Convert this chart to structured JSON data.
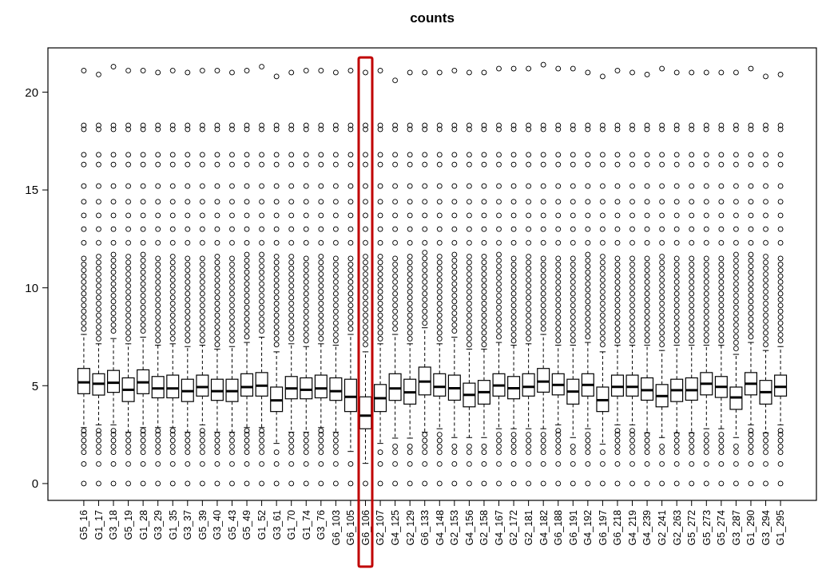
{
  "chart_data": {
    "type": "box",
    "title": "counts",
    "categories": [
      "G5_16",
      "G1_17",
      "G3_18",
      "G5_19",
      "G1_28",
      "G3_29",
      "G1_35",
      "G3_37",
      "G5_39",
      "G3_40",
      "G5_43",
      "G5_49",
      "G1_52",
      "G3_61",
      "G1_70",
      "G1_74",
      "G3_76",
      "G6_103",
      "G6_105",
      "G6_106",
      "G2_107",
      "G4_125",
      "G2_129",
      "G6_133",
      "G4_148",
      "G2_153",
      "G4_156",
      "G2_158",
      "G4_167",
      "G2_172",
      "G2_181",
      "G4_182",
      "G6_188",
      "G6_191",
      "G4_192",
      "G6_197",
      "G6_218",
      "G4_219",
      "G4_239",
      "G2_241",
      "G2_263",
      "G5_272",
      "G5_273",
      "G5_274",
      "G3_287",
      "G1_290",
      "G3_294",
      "G1_295"
    ],
    "ylim": [
      -0.86,
      22.26
    ],
    "yticks": [
      0,
      5,
      10,
      15,
      20
    ],
    "boxes": [
      {
        "low": 2.86,
        "q1": 4.59,
        "median": 5.17,
        "q3": 5.88,
        "high": 7.62,
        "outliers": [
          0,
          1.0,
          1.6,
          1.9,
          2.2,
          2.5,
          2.7,
          7.9,
          8.2,
          8.5,
          8.8,
          9.1,
          9.4,
          9.7,
          10.0,
          10.3,
          10.6,
          10.9,
          11.2,
          11.5,
          12.3,
          13.0,
          13.7,
          14.4,
          15.2,
          16.3,
          16.8,
          18.1,
          18.3,
          21.1
        ]
      },
      {
        "low": 3.0,
        "q1": 4.52,
        "median": 5.1,
        "q3": 5.61,
        "high": 7.14,
        "outliers": [
          0,
          1.0,
          1.6,
          1.9,
          2.2,
          2.5,
          2.7,
          7.4,
          7.7,
          8.0,
          8.3,
          8.6,
          8.9,
          9.2,
          9.5,
          9.8,
          10.1,
          10.4,
          10.7,
          11.0,
          11.3,
          11.6,
          12.3,
          13.0,
          13.7,
          14.4,
          15.2,
          16.3,
          16.8,
          18.1,
          18.3,
          20.9
        ]
      },
      {
        "low": 3.0,
        "q1": 4.66,
        "median": 5.15,
        "q3": 5.78,
        "high": 7.41,
        "outliers": [
          0,
          1.0,
          1.6,
          1.9,
          2.2,
          2.5,
          2.7,
          7.8,
          8.1,
          8.4,
          8.7,
          9.0,
          9.3,
          9.6,
          9.9,
          10.2,
          10.5,
          10.8,
          11.1,
          11.4,
          11.7,
          12.3,
          13.0,
          13.7,
          14.4,
          15.2,
          16.3,
          16.8,
          18.1,
          18.3,
          21.3
        ]
      },
      {
        "low": 2.62,
        "q1": 4.19,
        "median": 4.79,
        "q3": 5.4,
        "high": 7.14,
        "outliers": [
          0,
          1.0,
          1.6,
          1.9,
          2.2,
          2.5,
          7.4,
          7.7,
          8.0,
          8.3,
          8.6,
          8.9,
          9.2,
          9.5,
          9.8,
          10.1,
          10.4,
          10.7,
          11.0,
          11.3,
          11.6,
          12.3,
          13.0,
          13.7,
          14.4,
          15.2,
          16.3,
          16.8,
          18.1,
          18.3,
          21.1
        ]
      },
      {
        "low": 2.86,
        "q1": 4.59,
        "median": 5.17,
        "q3": 5.81,
        "high": 7.48,
        "outliers": [
          0,
          1.0,
          1.6,
          1.9,
          2.2,
          2.5,
          2.7,
          7.8,
          8.1,
          8.4,
          8.7,
          9.0,
          9.3,
          9.6,
          9.9,
          10.2,
          10.5,
          10.8,
          11.1,
          11.4,
          11.7,
          12.3,
          13.0,
          13.7,
          14.4,
          15.2,
          16.3,
          16.8,
          18.1,
          18.3,
          21.1
        ]
      },
      {
        "low": 2.86,
        "q1": 4.38,
        "median": 4.86,
        "q3": 5.47,
        "high": 7.07,
        "outliers": [
          0,
          1.0,
          1.6,
          1.9,
          2.2,
          2.5,
          2.7,
          7.3,
          7.6,
          7.9,
          8.2,
          8.5,
          8.8,
          9.1,
          9.4,
          9.7,
          10.0,
          10.3,
          10.6,
          10.9,
          11.2,
          11.5,
          12.3,
          13.0,
          13.7,
          14.4,
          15.2,
          16.3,
          16.8,
          18.1,
          18.3,
          21.0
        ]
      },
      {
        "low": 2.86,
        "q1": 4.38,
        "median": 4.86,
        "q3": 5.54,
        "high": 7.14,
        "outliers": [
          0,
          1.0,
          1.6,
          1.9,
          2.2,
          2.5,
          2.7,
          7.4,
          7.7,
          8.0,
          8.3,
          8.6,
          8.9,
          9.2,
          9.5,
          9.8,
          10.1,
          10.4,
          10.7,
          11.0,
          11.3,
          11.6,
          12.3,
          13.0,
          13.7,
          14.4,
          15.2,
          16.3,
          16.8,
          18.1,
          18.3,
          21.1
        ]
      },
      {
        "low": 2.62,
        "q1": 4.19,
        "median": 4.72,
        "q3": 5.33,
        "high": 7.0,
        "outliers": [
          0,
          1.0,
          1.6,
          1.9,
          2.2,
          2.5,
          7.3,
          7.6,
          7.9,
          8.2,
          8.5,
          8.8,
          9.1,
          9.4,
          9.7,
          10.0,
          10.3,
          10.6,
          10.9,
          11.2,
          11.5,
          12.3,
          13.0,
          13.7,
          14.4,
          15.2,
          16.3,
          16.8,
          18.1,
          18.3,
          21.0
        ]
      },
      {
        "low": 3.0,
        "q1": 4.47,
        "median": 4.93,
        "q3": 5.54,
        "high": 7.07,
        "outliers": [
          0,
          1.0,
          1.6,
          1.9,
          2.2,
          2.5,
          2.7,
          7.3,
          7.6,
          7.9,
          8.2,
          8.5,
          8.8,
          9.1,
          9.4,
          9.7,
          10.0,
          10.3,
          10.6,
          10.9,
          11.2,
          11.5,
          12.3,
          13.0,
          13.7,
          14.4,
          15.2,
          16.3,
          16.8,
          18.1,
          18.3,
          21.1
        ]
      },
      {
        "low": 2.62,
        "q1": 4.25,
        "median": 4.72,
        "q3": 5.33,
        "high": 6.87,
        "outliers": [
          0,
          1.0,
          1.6,
          1.9,
          2.2,
          2.5,
          7.1,
          7.4,
          7.7,
          8.0,
          8.3,
          8.6,
          8.9,
          9.2,
          9.5,
          9.8,
          10.1,
          10.4,
          10.7,
          11.0,
          11.3,
          11.6,
          12.3,
          13.0,
          13.7,
          14.4,
          15.2,
          16.3,
          16.8,
          18.1,
          18.3,
          21.1
        ]
      },
      {
        "low": 2.62,
        "q1": 4.19,
        "median": 4.72,
        "q3": 5.33,
        "high": 7.0,
        "outliers": [
          0,
          1.0,
          1.6,
          1.9,
          2.2,
          2.5,
          7.3,
          7.6,
          7.9,
          8.2,
          8.5,
          8.8,
          9.1,
          9.4,
          9.7,
          10.0,
          10.3,
          10.6,
          10.9,
          11.2,
          11.5,
          12.3,
          13.0,
          13.7,
          14.4,
          15.2,
          16.3,
          16.8,
          18.1,
          18.3,
          21.0
        ]
      },
      {
        "low": 2.86,
        "q1": 4.47,
        "median": 4.93,
        "q3": 5.61,
        "high": 7.21,
        "outliers": [
          0,
          1.0,
          1.6,
          1.9,
          2.2,
          2.5,
          2.7,
          7.5,
          7.8,
          8.1,
          8.4,
          8.7,
          9.0,
          9.3,
          9.6,
          9.9,
          10.2,
          10.5,
          10.8,
          11.1,
          11.4,
          11.7,
          12.3,
          13.0,
          13.7,
          14.4,
          15.2,
          16.3,
          16.8,
          18.1,
          18.3,
          21.1
        ]
      },
      {
        "low": 2.86,
        "q1": 4.47,
        "median": 5.0,
        "q3": 5.67,
        "high": 7.48,
        "outliers": [
          0,
          1.0,
          1.6,
          1.9,
          2.2,
          2.5,
          2.7,
          7.8,
          8.1,
          8.4,
          8.7,
          9.0,
          9.3,
          9.6,
          9.9,
          10.2,
          10.5,
          10.8,
          11.1,
          11.4,
          11.7,
          12.3,
          13.0,
          13.7,
          14.4,
          15.2,
          16.3,
          16.8,
          18.1,
          18.3,
          21.3
        ]
      },
      {
        "low": 2.05,
        "q1": 3.68,
        "median": 4.25,
        "q3": 4.93,
        "high": 6.73,
        "outliers": [
          0,
          1.0,
          1.6,
          7.1,
          7.4,
          7.7,
          8.0,
          8.3,
          8.6,
          8.9,
          9.2,
          9.5,
          9.8,
          10.1,
          10.4,
          10.7,
          11.0,
          11.3,
          11.6,
          12.3,
          13.0,
          13.7,
          14.4,
          15.2,
          16.3,
          16.8,
          18.1,
          18.3,
          20.8
        ]
      },
      {
        "low": 2.62,
        "q1": 4.33,
        "median": 4.86,
        "q3": 5.47,
        "high": 7.14,
        "outliers": [
          0,
          1.0,
          1.6,
          1.9,
          2.2,
          2.5,
          7.4,
          7.7,
          8.0,
          8.3,
          8.6,
          8.9,
          9.2,
          9.5,
          9.8,
          10.1,
          10.4,
          10.7,
          11.0,
          11.3,
          11.6,
          12.3,
          13.0,
          13.7,
          14.4,
          15.2,
          16.3,
          16.8,
          18.1,
          18.3,
          21.0
        ]
      },
      {
        "low": 2.62,
        "q1": 4.33,
        "median": 4.79,
        "q3": 5.4,
        "high": 7.0,
        "outliers": [
          0,
          1.0,
          1.6,
          1.9,
          2.2,
          2.5,
          7.3,
          7.6,
          7.9,
          8.2,
          8.5,
          8.8,
          9.1,
          9.4,
          9.7,
          10.0,
          10.3,
          10.6,
          10.9,
          11.2,
          11.5,
          12.3,
          13.0,
          13.7,
          14.4,
          15.2,
          16.3,
          16.8,
          18.1,
          18.3,
          21.1
        ]
      },
      {
        "low": 2.86,
        "q1": 4.38,
        "median": 4.86,
        "q3": 5.54,
        "high": 7.14,
        "outliers": [
          0,
          1.0,
          1.6,
          1.9,
          2.2,
          2.5,
          2.7,
          7.4,
          7.7,
          8.0,
          8.3,
          8.6,
          8.9,
          9.2,
          9.5,
          9.8,
          10.1,
          10.4,
          10.7,
          11.0,
          11.3,
          11.6,
          12.3,
          13.0,
          13.7,
          14.4,
          15.2,
          16.3,
          16.8,
          18.1,
          18.3,
          21.1
        ]
      },
      {
        "low": 2.62,
        "q1": 4.25,
        "median": 4.72,
        "q3": 5.4,
        "high": 7.07,
        "outliers": [
          0,
          1.0,
          1.6,
          1.9,
          2.2,
          2.5,
          7.3,
          7.6,
          7.9,
          8.2,
          8.5,
          8.8,
          9.1,
          9.4,
          9.7,
          10.0,
          10.3,
          10.6,
          10.9,
          11.2,
          11.5,
          12.3,
          13.0,
          13.7,
          14.4,
          15.2,
          16.3,
          16.8,
          18.1,
          18.3,
          21.0
        ]
      },
      {
        "low": 1.64,
        "q1": 3.68,
        "median": 4.43,
        "q3": 5.33,
        "high": 7.62,
        "outliers": [
          0,
          1.0,
          7.9,
          8.2,
          8.5,
          8.8,
          9.1,
          9.4,
          9.7,
          10.0,
          10.3,
          10.6,
          10.9,
          11.2,
          11.5,
          12.3,
          13.0,
          13.7,
          14.4,
          15.2,
          16.3,
          16.8,
          18.1,
          18.3,
          21.1
        ]
      },
      {
        "low": 1.03,
        "q1": 2.8,
        "median": 3.47,
        "q3": 4.43,
        "high": 6.73,
        "outliers": [
          0,
          7.1,
          7.4,
          7.7,
          8.0,
          8.3,
          8.6,
          8.9,
          9.2,
          9.5,
          9.8,
          10.1,
          10.4,
          10.7,
          11.0,
          11.3,
          11.6,
          12.3,
          13.0,
          13.7,
          14.4,
          15.2,
          16.3,
          16.8,
          18.1,
          18.3,
          21.0
        ]
      },
      {
        "low": 2.05,
        "q1": 3.68,
        "median": 4.36,
        "q3": 5.06,
        "high": 7.14,
        "outliers": [
          0,
          1.0,
          1.6,
          7.4,
          7.7,
          8.0,
          8.3,
          8.6,
          8.9,
          9.2,
          9.5,
          9.8,
          10.1,
          10.4,
          10.7,
          11.0,
          11.3,
          11.6,
          12.3,
          13.0,
          13.7,
          14.4,
          15.2,
          16.3,
          16.8,
          18.1,
          18.3,
          21.1
        ]
      },
      {
        "low": 2.32,
        "q1": 4.25,
        "median": 4.86,
        "q3": 5.61,
        "high": 7.62,
        "outliers": [
          0,
          1.0,
          1.6,
          1.9,
          7.9,
          8.2,
          8.5,
          8.8,
          9.1,
          9.4,
          9.7,
          10.0,
          10.3,
          10.6,
          10.9,
          11.2,
          11.5,
          12.3,
          13.0,
          13.7,
          14.4,
          15.2,
          16.3,
          16.8,
          18.1,
          18.3,
          20.6
        ]
      },
      {
        "low": 2.32,
        "q1": 4.06,
        "median": 4.66,
        "q3": 5.33,
        "high": 7.14,
        "outliers": [
          0,
          1.0,
          1.6,
          1.9,
          7.4,
          7.7,
          8.0,
          8.3,
          8.6,
          8.9,
          9.2,
          9.5,
          9.8,
          10.1,
          10.4,
          10.7,
          11.0,
          11.3,
          11.6,
          12.3,
          13.0,
          13.7,
          14.4,
          15.2,
          16.3,
          16.8,
          18.1,
          18.3,
          21.0
        ]
      },
      {
        "low": 2.62,
        "q1": 4.53,
        "median": 5.21,
        "q3": 5.95,
        "high": 7.96,
        "outliers": [
          0,
          1.0,
          1.6,
          1.9,
          2.2,
          2.5,
          8.2,
          8.5,
          8.8,
          9.1,
          9.4,
          9.7,
          10.0,
          10.3,
          10.6,
          10.9,
          11.2,
          11.5,
          11.8,
          12.3,
          13.0,
          13.7,
          14.4,
          15.2,
          16.3,
          16.8,
          18.1,
          18.3,
          21.0
        ]
      },
      {
        "low": 2.8,
        "q1": 4.47,
        "median": 4.94,
        "q3": 5.61,
        "high": 7.14,
        "outliers": [
          0,
          1.0,
          1.6,
          1.9,
          2.2,
          2.5,
          7.4,
          7.7,
          8.0,
          8.3,
          8.6,
          8.9,
          9.2,
          9.5,
          9.8,
          10.1,
          10.4,
          10.7,
          11.0,
          11.3,
          11.6,
          12.3,
          13.0,
          13.7,
          14.4,
          15.2,
          16.3,
          16.8,
          18.1,
          18.3,
          21.0
        ]
      },
      {
        "low": 2.35,
        "q1": 4.26,
        "median": 4.87,
        "q3": 5.54,
        "high": 7.48,
        "outliers": [
          0,
          1.0,
          1.6,
          1.9,
          7.8,
          8.1,
          8.4,
          8.7,
          9.0,
          9.3,
          9.6,
          9.9,
          10.2,
          10.5,
          10.8,
          11.1,
          11.4,
          11.7,
          12.3,
          13.0,
          13.7,
          14.4,
          15.2,
          16.3,
          16.8,
          18.1,
          18.3,
          21.1
        ]
      },
      {
        "low": 2.35,
        "q1": 3.92,
        "median": 4.53,
        "q3": 5.13,
        "high": 6.87,
        "outliers": [
          0,
          1.0,
          1.6,
          1.9,
          7.1,
          7.4,
          7.7,
          8.0,
          8.3,
          8.6,
          8.9,
          9.2,
          9.5,
          9.8,
          10.1,
          10.4,
          10.7,
          11.0,
          11.3,
          11.6,
          12.3,
          13.0,
          13.7,
          14.4,
          15.2,
          16.3,
          16.8,
          18.1,
          18.3,
          21.0
        ]
      },
      {
        "low": 2.35,
        "q1": 4.06,
        "median": 4.67,
        "q3": 5.27,
        "high": 6.87,
        "outliers": [
          0,
          1.0,
          1.6,
          1.9,
          7.1,
          7.4,
          7.7,
          8.0,
          8.3,
          8.6,
          8.9,
          9.2,
          9.5,
          9.8,
          10.1,
          10.4,
          10.7,
          11.0,
          11.3,
          11.6,
          12.3,
          13.0,
          13.7,
          14.4,
          15.2,
          16.3,
          16.8,
          18.1,
          18.3,
          21.0
        ]
      },
      {
        "low": 2.8,
        "q1": 4.47,
        "median": 5.01,
        "q3": 5.61,
        "high": 7.21,
        "outliers": [
          0,
          1.0,
          1.6,
          1.9,
          2.2,
          2.5,
          7.5,
          7.8,
          8.1,
          8.4,
          8.7,
          9.0,
          9.3,
          9.6,
          9.9,
          10.2,
          10.5,
          10.8,
          11.1,
          11.4,
          11.7,
          12.3,
          13.0,
          13.7,
          14.4,
          15.2,
          16.3,
          16.8,
          18.1,
          18.3,
          21.2
        ]
      },
      {
        "low": 2.8,
        "q1": 4.33,
        "median": 4.87,
        "q3": 5.47,
        "high": 7.07,
        "outliers": [
          0,
          1.0,
          1.6,
          1.9,
          2.2,
          2.5,
          7.3,
          7.6,
          7.9,
          8.2,
          8.5,
          8.8,
          9.1,
          9.4,
          9.7,
          10.0,
          10.3,
          10.6,
          10.9,
          11.2,
          11.5,
          12.3,
          13.0,
          13.7,
          14.4,
          15.2,
          16.3,
          16.8,
          18.1,
          18.3,
          21.2
        ]
      },
      {
        "low": 2.8,
        "q1": 4.47,
        "median": 4.94,
        "q3": 5.61,
        "high": 7.14,
        "outliers": [
          0,
          1.0,
          1.6,
          1.9,
          2.2,
          2.5,
          7.4,
          7.7,
          8.0,
          8.3,
          8.6,
          8.9,
          9.2,
          9.5,
          9.8,
          10.1,
          10.4,
          10.7,
          11.0,
          11.3,
          11.6,
          12.3,
          13.0,
          13.7,
          14.4,
          15.2,
          16.3,
          16.8,
          18.1,
          18.3,
          21.2
        ]
      },
      {
        "low": 2.8,
        "q1": 4.67,
        "median": 5.21,
        "q3": 5.88,
        "high": 7.62,
        "outliers": [
          0,
          1.0,
          1.6,
          1.9,
          2.2,
          2.5,
          7.9,
          8.2,
          8.5,
          8.8,
          9.1,
          9.4,
          9.7,
          10.0,
          10.3,
          10.6,
          10.9,
          11.2,
          11.5,
          12.3,
          13.0,
          13.7,
          14.4,
          15.2,
          16.3,
          16.8,
          18.1,
          18.3,
          21.4
        ]
      },
      {
        "low": 3.0,
        "q1": 4.53,
        "median": 5.04,
        "q3": 5.61,
        "high": 7.07,
        "outliers": [
          0,
          1.0,
          1.6,
          1.9,
          2.2,
          2.5,
          2.7,
          7.3,
          7.6,
          7.9,
          8.2,
          8.5,
          8.8,
          9.1,
          9.4,
          9.7,
          10.0,
          10.3,
          10.6,
          10.9,
          11.2,
          11.5,
          12.3,
          13.0,
          13.7,
          14.4,
          15.2,
          16.3,
          16.8,
          18.1,
          18.3,
          21.2
        ]
      },
      {
        "low": 2.35,
        "q1": 4.06,
        "median": 4.7,
        "q3": 5.33,
        "high": 7.07,
        "outliers": [
          0,
          1.0,
          1.6,
          1.9,
          7.3,
          7.6,
          7.9,
          8.2,
          8.5,
          8.8,
          9.1,
          9.4,
          9.7,
          10.0,
          10.3,
          10.6,
          10.9,
          11.2,
          11.5,
          12.3,
          13.0,
          13.7,
          14.4,
          15.2,
          16.3,
          16.8,
          18.1,
          18.3,
          21.2
        ]
      },
      {
        "low": 2.8,
        "q1": 4.47,
        "median": 5.04,
        "q3": 5.61,
        "high": 7.21,
        "outliers": [
          0,
          1.0,
          1.6,
          1.9,
          2.2,
          2.5,
          7.5,
          7.8,
          8.1,
          8.4,
          8.7,
          9.0,
          9.3,
          9.6,
          9.9,
          10.2,
          10.5,
          10.8,
          11.1,
          11.4,
          11.7,
          12.3,
          13.0,
          13.7,
          14.4,
          15.2,
          16.3,
          16.8,
          18.1,
          18.3,
          21.0
        ]
      },
      {
        "low": 2.01,
        "q1": 3.68,
        "median": 4.26,
        "q3": 4.93,
        "high": 6.73,
        "outliers": [
          0,
          1.0,
          1.6,
          7.1,
          7.4,
          7.7,
          8.0,
          8.3,
          8.6,
          8.9,
          9.2,
          9.5,
          9.8,
          10.1,
          10.4,
          10.7,
          11.0,
          11.3,
          11.6,
          12.3,
          13.0,
          13.7,
          14.4,
          15.2,
          16.3,
          16.8,
          18.1,
          18.3,
          20.8
        ]
      },
      {
        "low": 3.0,
        "q1": 4.47,
        "median": 4.94,
        "q3": 5.54,
        "high": 7.07,
        "outliers": [
          0,
          1.0,
          1.6,
          1.9,
          2.2,
          2.5,
          2.7,
          7.3,
          7.6,
          7.9,
          8.2,
          8.5,
          8.8,
          9.1,
          9.4,
          9.7,
          10.0,
          10.3,
          10.6,
          10.9,
          11.2,
          11.5,
          12.3,
          13.0,
          13.7,
          14.4,
          15.2,
          16.3,
          16.8,
          18.1,
          18.3,
          21.1
        ]
      },
      {
        "low": 3.0,
        "q1": 4.47,
        "median": 4.94,
        "q3": 5.54,
        "high": 7.07,
        "outliers": [
          0,
          1.0,
          1.6,
          1.9,
          2.2,
          2.5,
          2.7,
          7.3,
          7.6,
          7.9,
          8.2,
          8.5,
          8.8,
          9.1,
          9.4,
          9.7,
          10.0,
          10.3,
          10.6,
          10.9,
          11.2,
          11.5,
          12.3,
          13.0,
          13.7,
          14.4,
          15.2,
          16.3,
          16.8,
          18.1,
          18.3,
          21.0
        ]
      },
      {
        "low": 2.59,
        "q1": 4.26,
        "median": 4.77,
        "q3": 5.4,
        "high": 7.07,
        "outliers": [
          0,
          1.0,
          1.6,
          1.9,
          2.2,
          2.5,
          7.3,
          7.6,
          7.9,
          8.2,
          8.5,
          8.8,
          9.1,
          9.4,
          9.7,
          10.0,
          10.3,
          10.6,
          10.9,
          11.2,
          11.5,
          12.3,
          13.0,
          13.7,
          14.4,
          15.2,
          16.3,
          16.8,
          18.1,
          18.3,
          20.9
        ]
      },
      {
        "low": 2.35,
        "q1": 3.92,
        "median": 4.47,
        "q3": 5.06,
        "high": 6.8,
        "outliers": [
          0,
          1.0,
          1.6,
          1.9,
          7.1,
          7.4,
          7.7,
          8.0,
          8.3,
          8.6,
          8.9,
          9.2,
          9.5,
          9.8,
          10.1,
          10.4,
          10.7,
          11.0,
          11.3,
          11.6,
          12.3,
          13.0,
          13.7,
          14.4,
          15.2,
          16.3,
          16.8,
          18.1,
          18.3,
          21.2
        ]
      },
      {
        "low": 2.59,
        "q1": 4.19,
        "median": 4.77,
        "q3": 5.33,
        "high": 7.07,
        "outliers": [
          0,
          1.0,
          1.6,
          1.9,
          2.2,
          2.5,
          7.3,
          7.6,
          7.9,
          8.2,
          8.5,
          8.8,
          9.1,
          9.4,
          9.7,
          10.0,
          10.3,
          10.6,
          10.9,
          11.2,
          11.5,
          12.3,
          13.0,
          13.7,
          14.4,
          15.2,
          16.3,
          16.8,
          18.1,
          18.3,
          21.0
        ]
      },
      {
        "low": 2.59,
        "q1": 4.26,
        "median": 4.77,
        "q3": 5.4,
        "high": 7.07,
        "outliers": [
          0,
          1.0,
          1.6,
          1.9,
          2.2,
          2.5,
          7.3,
          7.6,
          7.9,
          8.2,
          8.5,
          8.8,
          9.1,
          9.4,
          9.7,
          10.0,
          10.3,
          10.6,
          10.9,
          11.2,
          11.5,
          12.3,
          13.0,
          13.7,
          14.4,
          15.2,
          16.3,
          16.8,
          18.1,
          18.3,
          21.0
        ]
      },
      {
        "low": 2.8,
        "q1": 4.53,
        "median": 5.1,
        "q3": 5.67,
        "high": 7.07,
        "outliers": [
          0,
          1.0,
          1.6,
          1.9,
          2.2,
          2.5,
          7.3,
          7.6,
          7.9,
          8.2,
          8.5,
          8.8,
          9.1,
          9.4,
          9.7,
          10.0,
          10.3,
          10.6,
          10.9,
          11.2,
          11.5,
          12.3,
          13.0,
          13.7,
          14.4,
          15.2,
          16.3,
          16.8,
          18.1,
          18.3,
          21.0
        ]
      },
      {
        "low": 2.8,
        "q1": 4.4,
        "median": 4.94,
        "q3": 5.47,
        "high": 7.07,
        "outliers": [
          0,
          1.0,
          1.6,
          1.9,
          2.2,
          2.5,
          7.3,
          7.6,
          7.9,
          8.2,
          8.5,
          8.8,
          9.1,
          9.4,
          9.7,
          10.0,
          10.3,
          10.6,
          10.9,
          11.2,
          11.5,
          12.3,
          13.0,
          13.7,
          14.4,
          15.2,
          16.3,
          16.8,
          18.1,
          18.3,
          21.0
        ]
      },
      {
        "low": 2.35,
        "q1": 3.79,
        "median": 4.4,
        "q3": 4.93,
        "high": 6.6,
        "outliers": [
          0,
          1.0,
          1.6,
          1.9,
          6.9,
          7.2,
          7.5,
          7.8,
          8.1,
          8.4,
          8.7,
          9.0,
          9.3,
          9.6,
          9.9,
          10.2,
          10.5,
          10.8,
          11.1,
          11.4,
          11.7,
          12.3,
          13.0,
          13.7,
          14.4,
          15.2,
          16.3,
          16.8,
          18.1,
          18.3,
          21.0
        ]
      },
      {
        "low": 3.0,
        "q1": 4.53,
        "median": 5.1,
        "q3": 5.67,
        "high": 7.21,
        "outliers": [
          0,
          1.0,
          1.6,
          1.9,
          2.2,
          2.5,
          2.7,
          7.5,
          7.8,
          8.1,
          8.4,
          8.7,
          9.0,
          9.3,
          9.6,
          9.9,
          10.2,
          10.5,
          10.8,
          11.1,
          11.4,
          11.7,
          12.3,
          13.0,
          13.7,
          14.4,
          15.2,
          16.3,
          16.8,
          18.1,
          18.3,
          21.2
        ]
      },
      {
        "low": 2.59,
        "q1": 4.06,
        "median": 4.67,
        "q3": 5.27,
        "high": 6.8,
        "outliers": [
          0,
          1.0,
          1.6,
          1.9,
          2.2,
          2.5,
          7.1,
          7.4,
          7.7,
          8.0,
          8.3,
          8.6,
          8.9,
          9.2,
          9.5,
          9.8,
          10.1,
          10.4,
          10.7,
          11.0,
          11.3,
          11.6,
          12.3,
          13.0,
          13.7,
          14.4,
          15.2,
          16.3,
          16.8,
          18.1,
          18.3,
          20.8
        ]
      },
      {
        "low": 3.0,
        "q1": 4.47,
        "median": 4.94,
        "q3": 5.54,
        "high": 7.0,
        "outliers": [
          0,
          1.0,
          1.6,
          1.9,
          2.2,
          2.5,
          2.7,
          7.3,
          7.6,
          7.9,
          8.2,
          8.5,
          8.8,
          9.1,
          9.4,
          9.7,
          10.0,
          10.3,
          10.6,
          10.9,
          11.2,
          11.5,
          12.3,
          13.0,
          13.7,
          14.4,
          15.2,
          16.3,
          16.8,
          18.1,
          18.3,
          20.9
        ]
      }
    ]
  }
}
